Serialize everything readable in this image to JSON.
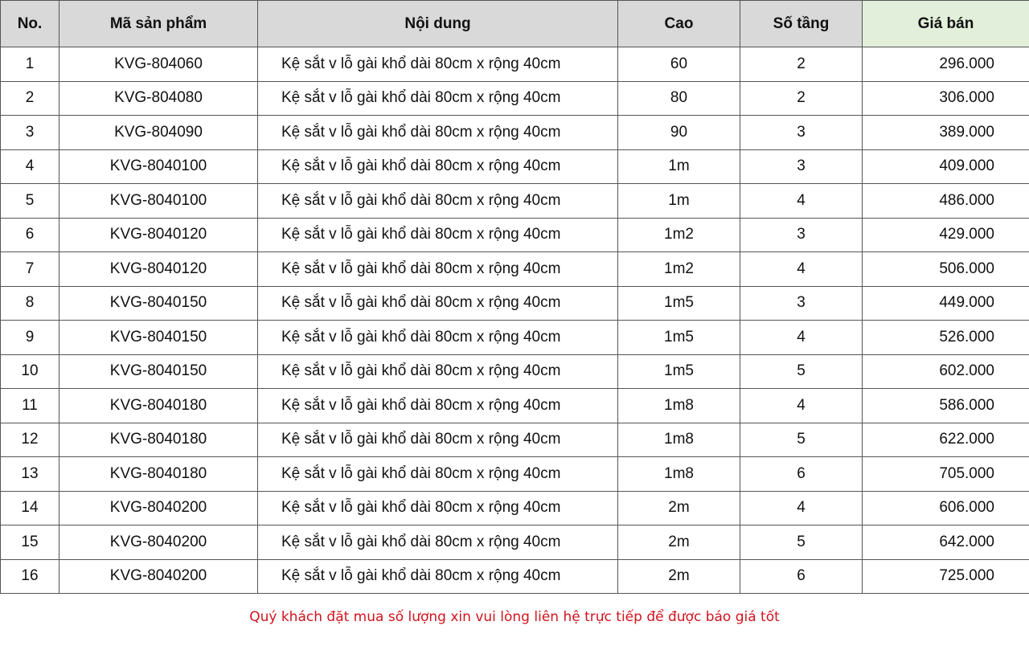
{
  "headers": [
    "No.",
    "Mã sản phẩm",
    "Nội dung",
    "Cao",
    "Số tầng",
    "Giá bán"
  ],
  "rows": [
    [
      "1",
      "KVG-804060",
      "Kệ sắt v lỗ gài khổ dài 80cm x rộng 40cm",
      "60",
      "2",
      "296.000"
    ],
    [
      "2",
      "KVG-804080",
      "Kệ sắt v lỗ gài khổ dài 80cm x rộng 40cm",
      "80",
      "2",
      "306.000"
    ],
    [
      "3",
      "KVG-804090",
      "Kệ sắt v lỗ gài khổ dài 80cm x rộng 40cm",
      "90",
      "3",
      "389.000"
    ],
    [
      "4",
      "KVG-8040100",
      "Kệ sắt v lỗ gài khổ dài 80cm x rộng 40cm",
      "1m",
      "3",
      "409.000"
    ],
    [
      "5",
      "KVG-8040100",
      "Kệ sắt v lỗ gài khổ dài 80cm x rộng 40cm",
      "1m",
      "4",
      "486.000"
    ],
    [
      "6",
      "KVG-8040120",
      "Kệ sắt v lỗ gài khổ dài 80cm x rộng 40cm",
      "1m2",
      "3",
      "429.000"
    ],
    [
      "7",
      "KVG-8040120",
      "Kệ sắt v lỗ gài khổ dài 80cm x rộng 40cm",
      "1m2",
      "4",
      "506.000"
    ],
    [
      "8",
      "KVG-8040150",
      "Kệ sắt v lỗ gài khổ dài 80cm x rộng 40cm",
      "1m5",
      "3",
      "449.000"
    ],
    [
      "9",
      "KVG-8040150",
      "Kệ sắt v lỗ gài khổ dài 80cm x rộng 40cm",
      "1m5",
      "4",
      "526.000"
    ],
    [
      "10",
      "KVG-8040150",
      "Kệ sắt v lỗ gài khổ dài 80cm x rộng 40cm",
      "1m5",
      "5",
      "602.000"
    ],
    [
      "11",
      "KVG-8040180",
      "Kệ sắt v lỗ gài khổ dài 80cm x rộng 40cm",
      "1m8",
      "4",
      "586.000"
    ],
    [
      "12",
      "KVG-8040180",
      "Kệ sắt v lỗ gài khổ dài 80cm x rộng 40cm",
      "1m8",
      "5",
      "622.000"
    ],
    [
      "13",
      "KVG-8040180",
      "Kệ sắt v lỗ gài khổ dài 80cm x rộng 40cm",
      "1m8",
      "6",
      "705.000"
    ],
    [
      "14",
      "KVG-8040200",
      "Kệ sắt v lỗ gài khổ dài 80cm x rộng 40cm",
      "2m",
      "4",
      "606.000"
    ],
    [
      "15",
      "KVG-8040200",
      "Kệ sắt v lỗ gài khổ dài 80cm x rộng 40cm",
      "2m",
      "5",
      "642.000"
    ],
    [
      "16",
      "KVG-8040200",
      "Kệ sắt v lỗ gài khổ dài 80cm x rộng 40cm",
      "2m",
      "6",
      "725.000"
    ]
  ],
  "note": "Quý khách đặt mua số lượng xin vui lòng liên hệ trực tiếp để được báo giá tốt",
  "colors": {
    "header_bg": "#d9d9d9",
    "price_header_bg": "#e2efda",
    "note": "#d0141e"
  }
}
